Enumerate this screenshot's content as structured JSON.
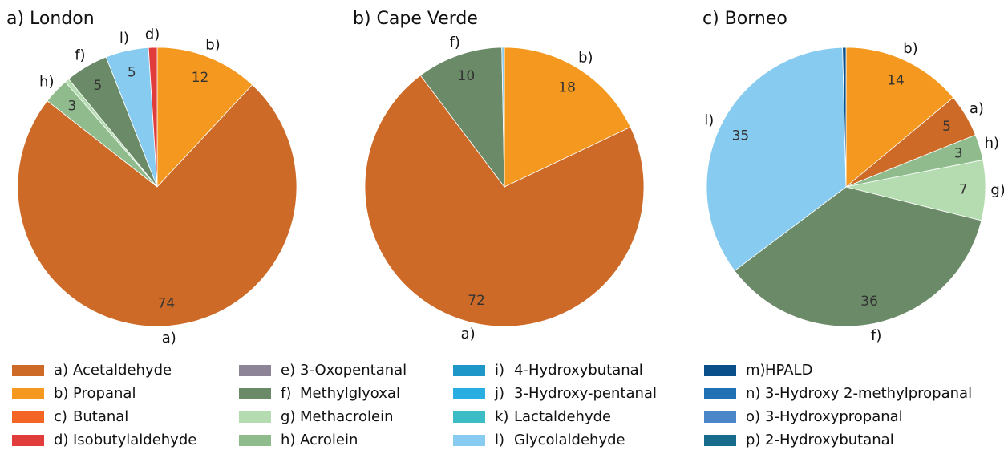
{
  "chart_data": [
    {
      "type": "pie",
      "title": "a) London",
      "categories": [
        "b)",
        "a)",
        "h)",
        "g)",
        "f)",
        "l)",
        "d)"
      ],
      "values": [
        12,
        74,
        3,
        0.5,
        5,
        5,
        1
      ],
      "colors": [
        "#f5981f",
        "#cd6a28",
        "#8fbb8d",
        "#b5dcb0",
        "#6b8b68",
        "#87ccf0",
        "#e03c3c"
      ]
    },
    {
      "type": "pie",
      "title": "b) Cape Verde",
      "categories": [
        "b)",
        "a)",
        "f)",
        "l)"
      ],
      "values": [
        18,
        72,
        10,
        0.3
      ],
      "colors": [
        "#f5981f",
        "#cd6a28",
        "#6b8b68",
        "#87ccf0"
      ]
    },
    {
      "type": "pie",
      "title": "c) Borneo",
      "categories": [
        "b)",
        "a)",
        "h)",
        "g)",
        "f)",
        "l)",
        "m)"
      ],
      "values": [
        14,
        5,
        3,
        7,
        36,
        35,
        0.4
      ],
      "colors": [
        "#f5981f",
        "#cd6a28",
        "#8fbb8d",
        "#b5dcb0",
        "#6b8b68",
        "#87ccf0",
        "#0b4f8a"
      ]
    }
  ],
  "legend": [
    {
      "key": "a)",
      "label": "Acetaldehyde",
      "color": "#cd6a28"
    },
    {
      "key": "b)",
      "label": "Propanal",
      "color": "#f5981f"
    },
    {
      "key": "c)",
      "label": "Butanal",
      "color": "#f26524"
    },
    {
      "key": "d)",
      "label": "Isobutylaldehyde",
      "color": "#e03c3c"
    },
    {
      "key": "e)",
      "label": "3-Oxopentanal",
      "color": "#8e8497"
    },
    {
      "key": "f)",
      "label": "Methylglyoxal",
      "color": "#6b8b68"
    },
    {
      "key": "g)",
      "label": "Methacrolein",
      "color": "#b5dcb0"
    },
    {
      "key": "h)",
      "label": "Acrolein",
      "color": "#8fbb8d"
    },
    {
      "key": "i)",
      "label": "4-Hydroxybutanal",
      "color": "#1f96c8"
    },
    {
      "key": "j)",
      "label": "3-Hydroxy-pentanal",
      "color": "#28aee0"
    },
    {
      "key": "k)",
      "label": "Lactaldehyde",
      "color": "#3cbcc4"
    },
    {
      "key": "l)",
      "label": "Glycolaldehyde",
      "color": "#87ccf0"
    },
    {
      "key": "m)",
      "label": "HPALD",
      "color": "#0b4f8a"
    },
    {
      "key": "n)",
      "label": "3-Hydroxy 2-methylpropanal",
      "color": "#2172b4"
    },
    {
      "key": "o)",
      "label": "3-Hydroxypropanal",
      "color": "#4a86c8"
    },
    {
      "key": "p)",
      "label": "2-Hydroxybutanal",
      "color": "#176b8c"
    }
  ]
}
